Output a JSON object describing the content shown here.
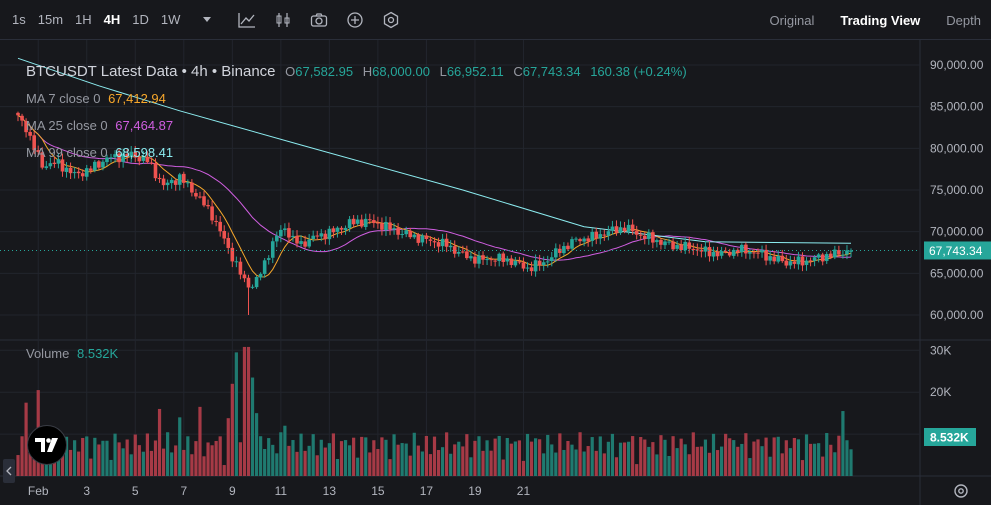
{
  "toolbar": {
    "timeframes": [
      {
        "label": "1s",
        "active": false
      },
      {
        "label": "15m",
        "active": false
      },
      {
        "label": "1H",
        "active": false
      },
      {
        "label": "4H",
        "active": true
      },
      {
        "label": "1D",
        "active": false
      },
      {
        "label": "1W",
        "active": false
      }
    ],
    "icons": [
      "dropdown-icon",
      "indicator-icon",
      "candlestick-icon",
      "camera-icon",
      "add-circle-icon",
      "settings-icon"
    ],
    "views": [
      {
        "label": "Original",
        "active": false
      },
      {
        "label": "Trading View",
        "active": true
      },
      {
        "label": "Depth",
        "active": false
      }
    ]
  },
  "legend": {
    "symbol": "BTCUSDT Latest Data • 4h • Binance",
    "open_key": "O",
    "open": "67,582.95",
    "high_key": "H",
    "high": "68,000.00",
    "low_key": "L",
    "low": "66,952.11",
    "close_key": "C",
    "close": "67,743.34",
    "change": "160.38 (+0.24%)",
    "ma": [
      {
        "label": "MA 7 close 0",
        "value": "67,412.94",
        "color": "#f7a72b"
      },
      {
        "label": "MA 25 close 0",
        "value": "67,464.87",
        "color": "#d05ee0"
      },
      {
        "label": "MA 99 close 0",
        "value": "68,598.41",
        "color": "#8cecf0"
      }
    ],
    "volume_label": "Volume",
    "volume_value": "8.532K"
  },
  "chart_data": {
    "type": "candlestick",
    "price_axis": {
      "ticks": [
        "90,000.00",
        "85,000.00",
        "80,000.00",
        "75,000.00",
        "70,000.00",
        "65,000.00",
        "60,000.00"
      ],
      "range": [
        57000,
        93000
      ]
    },
    "volume_axis": {
      "ticks": [
        "30K",
        "20K",
        "10K"
      ],
      "range": [
        0,
        31500
      ]
    },
    "x_ticks": [
      "Feb",
      "3",
      "5",
      "7",
      "9",
      "11",
      "13",
      "15",
      "17",
      "19",
      "21"
    ],
    "current_price_label": "67,743.34",
    "current_volume_label": "8.532K",
    "colors": {
      "up": "#26a69a",
      "down": "#ef5350",
      "up_vol": "#1f7a70",
      "down_vol": "#a63a46",
      "ma7": "#f7a72b",
      "ma25": "#d05ee0",
      "ma99": "#8cecf0"
    },
    "anchors": [
      [
        0,
        83700
      ],
      [
        2,
        82500
      ],
      [
        4,
        80000
      ],
      [
        6,
        78000
      ],
      [
        10,
        78200
      ],
      [
        14,
        76800
      ],
      [
        18,
        77500
      ],
      [
        22,
        78800
      ],
      [
        28,
        79200
      ],
      [
        32,
        78500
      ],
      [
        36,
        75500
      ],
      [
        40,
        76500
      ],
      [
        44,
        74500
      ],
      [
        48,
        72000
      ],
      [
        50,
        70000
      ],
      [
        52,
        68000
      ],
      [
        54,
        66000
      ],
      [
        56,
        64000
      ],
      [
        58,
        63500
      ],
      [
        60,
        65000
      ],
      [
        62,
        67500
      ],
      [
        64,
        69500
      ],
      [
        66,
        70500
      ],
      [
        68,
        69000
      ],
      [
        70,
        68500
      ],
      [
        74,
        69500
      ],
      [
        78,
        70000
      ],
      [
        82,
        71000
      ],
      [
        86,
        71300
      ],
      [
        90,
        70800
      ],
      [
        94,
        70000
      ],
      [
        98,
        69400
      ],
      [
        102,
        68900
      ],
      [
        106,
        68400
      ],
      [
        110,
        67200
      ],
      [
        114,
        66600
      ],
      [
        118,
        66800
      ],
      [
        122,
        66500
      ],
      [
        124,
        66000
      ],
      [
        126,
        65600
      ],
      [
        130,
        66300
      ],
      [
        134,
        67800
      ],
      [
        138,
        69000
      ],
      [
        142,
        69300
      ],
      [
        146,
        70000
      ],
      [
        150,
        70500
      ],
      [
        154,
        69600
      ],
      [
        158,
        68900
      ],
      [
        162,
        68300
      ],
      [
        166,
        68100
      ],
      [
        170,
        67600
      ],
      [
        174,
        67300
      ],
      [
        178,
        67800
      ],
      [
        182,
        67600
      ],
      [
        186,
        66900
      ],
      [
        190,
        66300
      ],
      [
        194,
        66400
      ],
      [
        198,
        66900
      ],
      [
        202,
        67300
      ],
      [
        206,
        67743.34
      ]
    ],
    "ma99_points": [
      [
        0,
        90800
      ],
      [
        20,
        87500
      ],
      [
        40,
        84500
      ],
      [
        70,
        80400
      ],
      [
        110,
        75000
      ],
      [
        140,
        70600
      ],
      [
        170,
        68800
      ],
      [
        206,
        68598.41
      ]
    ],
    "volume_spikes": {
      "52": 13800,
      "53": 22000,
      "54": 29500,
      "56": 30800,
      "57": 30800,
      "58": 23500,
      "59": 15000,
      "2": 17500,
      "5": 20500,
      "35": 16000,
      "40": 14000,
      "45": 16500,
      "66": 12000,
      "128": 9000,
      "150": 8000,
      "176": 9000,
      "204": 15500,
      "205": 8532
    }
  }
}
